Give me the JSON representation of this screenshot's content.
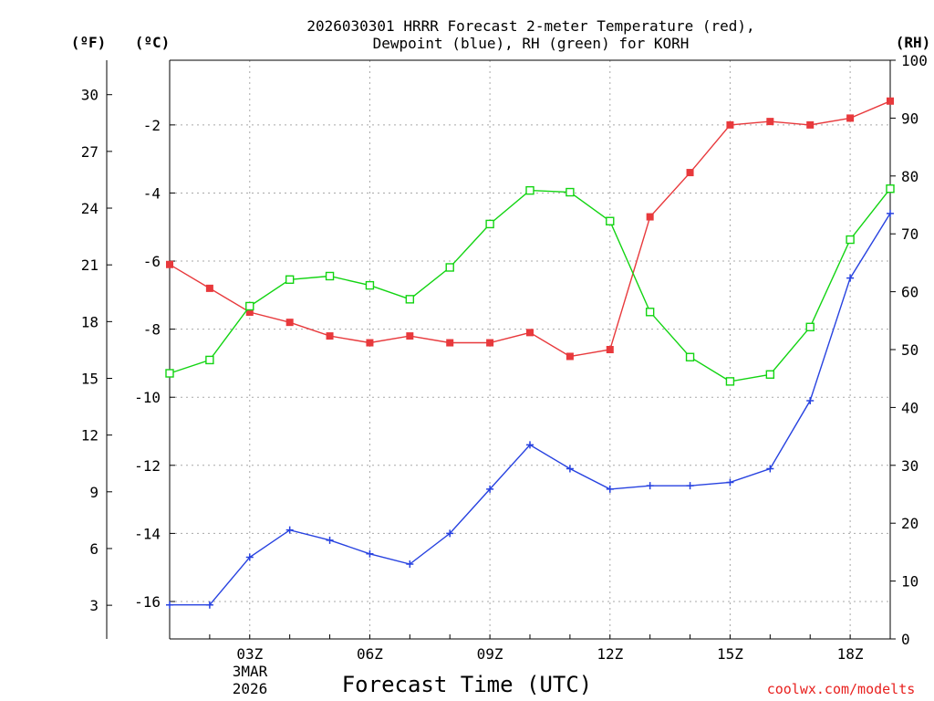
{
  "chart_data": {
    "type": "line",
    "title_line1": "2026030301 HRRR Forecast 2-meter Temperature (red),",
    "title_line2": "Dewpoint (blue), RH (green) for KORH",
    "xlabel": "Forecast Time (UTC)",
    "credit": "coolwx.com/modelts",
    "x_hours": [
      1,
      2,
      3,
      4,
      5,
      6,
      7,
      8,
      9,
      10,
      11,
      12,
      13,
      14,
      15,
      16,
      17,
      18,
      19
    ],
    "x_tick_labels": [
      {
        "hour": 3,
        "label": "03Z"
      },
      {
        "hour": 6,
        "label": "06Z"
      },
      {
        "hour": 9,
        "label": "09Z"
      },
      {
        "hour": 12,
        "label": "12Z"
      },
      {
        "hour": 15,
        "label": "15Z"
      },
      {
        "hour": 18,
        "label": "18Z"
      }
    ],
    "date_label_line1": "3MAR",
    "date_label_line2": "2026",
    "xlim": [
      1,
      19
    ],
    "axes": {
      "fahrenheit": {
        "unit_label": "(ºF)",
        "ticks": [
          3,
          6,
          9,
          12,
          15,
          18,
          21,
          24,
          27,
          30
        ]
      },
      "celsius": {
        "unit_label": "(ºC)",
        "ticks": [
          -16,
          -14,
          -12,
          -10,
          -8,
          -6,
          -4,
          -2
        ],
        "ylim": [
          -17.1,
          -0.1
        ]
      },
      "rh": {
        "unit_label": "(RH)",
        "ticks": [
          0,
          10,
          20,
          30,
          40,
          50,
          60,
          70,
          80,
          90,
          100
        ],
        "ylim": [
          0,
          100
        ]
      }
    },
    "series": [
      {
        "name": "2-meter Temperature",
        "axis": "celsius",
        "color": "#e8393c",
        "marker": "filled-square",
        "values": [
          -6.1,
          -6.8,
          -7.5,
          -7.8,
          -8.2,
          -8.4,
          -8.2,
          -8.4,
          -8.4,
          -8.1,
          -8.8,
          -8.6,
          -4.7,
          -3.4,
          -2.0,
          -1.9,
          -2.0,
          -1.8,
          -1.3
        ]
      },
      {
        "name": "Dewpoint",
        "axis": "celsius",
        "color": "#2742e0",
        "marker": "plus",
        "values": [
          -16.1,
          -16.1,
          -14.7,
          -13.9,
          -14.2,
          -14.6,
          -14.9,
          -14.0,
          -12.7,
          -11.4,
          -12.1,
          -12.7,
          -12.6,
          -12.6,
          -12.5,
          -12.1,
          -10.1,
          -6.5,
          -4.6
        ]
      },
      {
        "name": "RH",
        "axis": "rh",
        "color": "#12d412",
        "marker": "open-square",
        "values": [
          45.9,
          48.2,
          57.5,
          62.1,
          62.7,
          61.1,
          58.7,
          64.2,
          71.7,
          77.5,
          77.2,
          72.2,
          56.5,
          48.7,
          44.5,
          45.7,
          53.9,
          69.0,
          77.8
        ]
      }
    ]
  }
}
